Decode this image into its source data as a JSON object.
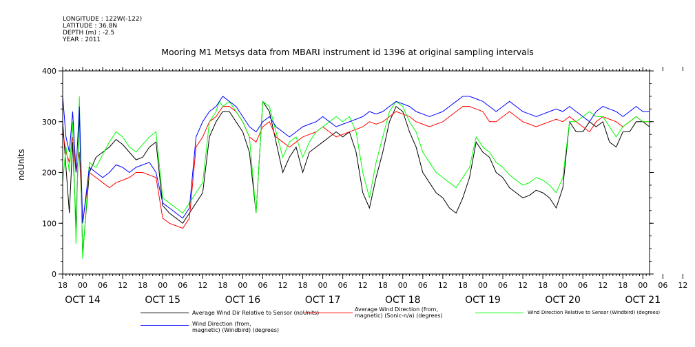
{
  "header": {
    "longitude": "LONGITUDE : 122W(-122)",
    "latitude": "LATITUDE : 36.8N",
    "depth": "DEPTH (m) : -2.5",
    "year": "YEAR : 2011"
  },
  "chart_data": {
    "type": "line",
    "title": "Mooring M1 Metsys data from MBARI instrument id 1396 at original sampling intervals",
    "ylabel": "noUnits",
    "xlabel": "",
    "ylim": [
      0,
      400
    ],
    "y_ticks": [
      0,
      100,
      200,
      300,
      400
    ],
    "xlim_hours": [
      0,
      176
    ],
    "x_hour_ticks": [
      "18",
      "00",
      "06",
      "12",
      "18",
      "00",
      "06",
      "12",
      "18",
      "00",
      "06",
      "12",
      "18",
      "00",
      "06",
      "12",
      "18",
      "00",
      "06",
      "12",
      "18",
      "00",
      "06",
      "12",
      "18",
      "00",
      "06",
      "12",
      "18",
      "00",
      "06",
      "12"
    ],
    "x_day_labels": [
      {
        "label": "OCT 14",
        "hour": 6
      },
      {
        "label": "OCT 15",
        "hour": 30
      },
      {
        "label": "OCT 16",
        "hour": 54
      },
      {
        "label": "OCT 17",
        "hour": 78
      },
      {
        "label": "OCT 18",
        "hour": 102
      },
      {
        "label": "OCT 19",
        "hour": 126
      },
      {
        "label": "OCT 20",
        "hour": 150
      },
      {
        "label": "OCT 21",
        "hour": 174
      }
    ],
    "grid": false,
    "legend_position": "bottom",
    "series": [
      {
        "name": "Average Wind Dir Relative to Sensor (noUnits)",
        "color": "#000000",
        "hours": [
          0,
          1,
          2,
          3,
          4,
          5,
          6,
          8,
          10,
          12,
          14,
          16,
          18,
          20,
          22,
          24,
          26,
          28,
          30,
          32,
          34,
          36,
          38,
          40,
          42,
          44,
          46,
          47,
          48,
          50,
          52,
          54,
          56,
          58,
          60,
          62,
          64,
          66,
          68,
          70,
          72,
          74,
          76,
          78,
          80,
          82,
          84,
          86,
          88,
          90,
          92,
          94,
          96,
          98,
          100,
          102,
          104,
          106,
          108,
          110,
          112,
          114,
          116,
          118,
          120,
          122,
          124,
          126,
          128,
          130,
          132,
          134,
          136,
          138,
          140,
          142,
          144,
          146,
          148,
          150,
          152,
          154,
          156,
          158,
          160,
          162,
          164,
          166,
          168,
          170,
          172,
          174,
          176
        ],
        "values": [
          300,
          210,
          120,
          260,
          90,
          320,
          40,
          200,
          230,
          240,
          250,
          265,
          255,
          240,
          225,
          230,
          250,
          260,
          135,
          120,
          110,
          100,
          120,
          140,
          160,
          270,
          300,
          310,
          320,
          320,
          300,
          280,
          240,
          120,
          340,
          320,
          260,
          200,
          230,
          250,
          200,
          240,
          250,
          260,
          270,
          280,
          270,
          280,
          240,
          160,
          130,
          190,
          240,
          300,
          330,
          320,
          280,
          250,
          200,
          180,
          160,
          150,
          130,
          120,
          150,
          190,
          260,
          240,
          230,
          200,
          190,
          170,
          160,
          150,
          155,
          165,
          160,
          150,
          130,
          170,
          300,
          280,
          280,
          300,
          290,
          300,
          260,
          250,
          280,
          280,
          300,
          300,
          290
        ]
      },
      {
        "name": "Average Wind Direction (from, magnetic) (Sonic-n/a) (degrees)",
        "color": "#ff0000",
        "hours": [
          0,
          1,
          2,
          3,
          4,
          5,
          6,
          8,
          10,
          12,
          14,
          16,
          18,
          20,
          22,
          24,
          26,
          28,
          30,
          32,
          34,
          36,
          38,
          40,
          42,
          44,
          46,
          47,
          48,
          50,
          52,
          54,
          56,
          58,
          60,
          62,
          64,
          66,
          68,
          70,
          72,
          74,
          76,
          78,
          80,
          82,
          84,
          86,
          88,
          90,
          92,
          94,
          96,
          98,
          100,
          102,
          104,
          106,
          108,
          110,
          112,
          114,
          116,
          118,
          120,
          122,
          124,
          126,
          128,
          130,
          132,
          134,
          136,
          138,
          140,
          142,
          144,
          146,
          148,
          150,
          152,
          154,
          156,
          158,
          160,
          162,
          164,
          166,
          168,
          170,
          172,
          174,
          176
        ],
        "values": [
          280,
          240,
          220,
          270,
          200,
          240,
          100,
          200,
          190,
          180,
          170,
          180,
          185,
          190,
          200,
          200,
          195,
          190,
          110,
          100,
          95,
          90,
          110,
          250,
          270,
          300,
          310,
          320,
          330,
          330,
          320,
          300,
          270,
          260,
          290,
          300,
          270,
          260,
          250,
          260,
          270,
          275,
          280,
          290,
          280,
          270,
          275,
          280,
          285,
          290,
          300,
          295,
          300,
          310,
          320,
          315,
          310,
          300,
          295,
          290,
          295,
          300,
          310,
          320,
          330,
          330,
          325,
          320,
          300,
          300,
          310,
          320,
          310,
          300,
          295,
          290,
          295,
          300,
          305,
          300,
          310,
          300,
          290,
          280,
          300,
          310,
          305,
          300,
          290,
          300,
          310,
          300,
          300
        ]
      },
      {
        "name": "Wind Direction Relative to Sensor (Windbird) (degrees)",
        "color": "#00ff00",
        "hours": [
          0,
          1,
          2,
          3,
          4,
          5,
          6,
          8,
          10,
          12,
          14,
          16,
          18,
          20,
          22,
          24,
          26,
          28,
          30,
          32,
          34,
          36,
          38,
          40,
          42,
          44,
          46,
          47,
          48,
          50,
          52,
          54,
          56,
          58,
          60,
          62,
          64,
          66,
          68,
          70,
          72,
          74,
          76,
          78,
          80,
          82,
          84,
          86,
          88,
          90,
          92,
          94,
          96,
          98,
          100,
          102,
          104,
          106,
          108,
          110,
          112,
          114,
          116,
          118,
          120,
          122,
          124,
          126,
          128,
          130,
          132,
          134,
          136,
          138,
          140,
          142,
          144,
          146,
          148,
          150,
          152,
          154,
          156,
          158,
          160,
          162,
          164,
          166,
          168,
          170,
          172,
          174,
          176
        ],
        "values": [
          180,
          250,
          200,
          300,
          60,
          350,
          30,
          220,
          210,
          235,
          260,
          280,
          270,
          250,
          240,
          255,
          270,
          280,
          150,
          140,
          130,
          120,
          140,
          160,
          180,
          300,
          320,
          340,
          330,
          340,
          320,
          300,
          270,
          120,
          340,
          330,
          280,
          230,
          260,
          270,
          230,
          260,
          280,
          290,
          300,
          310,
          300,
          310,
          280,
          200,
          150,
          220,
          270,
          320,
          340,
          330,
          300,
          280,
          240,
          220,
          200,
          190,
          180,
          170,
          190,
          210,
          270,
          250,
          240,
          220,
          210,
          195,
          185,
          175,
          180,
          190,
          185,
          175,
          160,
          190,
          300,
          300,
          310,
          320,
          310,
          310,
          290,
          270,
          290,
          300,
          310,
          300,
          300
        ]
      },
      {
        "name": "Wind Direction (from, magnetic) (Windbird) (degrees)",
        "color": "#0000ff",
        "hours": [
          0,
          1,
          2,
          3,
          4,
          5,
          6,
          8,
          10,
          12,
          14,
          16,
          18,
          20,
          22,
          24,
          26,
          28,
          30,
          32,
          34,
          36,
          38,
          40,
          42,
          44,
          46,
          47,
          48,
          50,
          52,
          54,
          56,
          58,
          60,
          62,
          64,
          66,
          68,
          70,
          72,
          74,
          76,
          78,
          80,
          82,
          84,
          86,
          88,
          90,
          92,
          94,
          96,
          98,
          100,
          102,
          104,
          106,
          108,
          110,
          112,
          114,
          116,
          118,
          120,
          122,
          124,
          126,
          128,
          130,
          132,
          134,
          136,
          138,
          140,
          142,
          144,
          146,
          148,
          150,
          152,
          154,
          156,
          158,
          160,
          162,
          164,
          166,
          168,
          170,
          172,
          174,
          176
        ],
        "values": [
          350,
          270,
          240,
          320,
          200,
          330,
          100,
          210,
          200,
          190,
          200,
          215,
          210,
          200,
          210,
          215,
          220,
          200,
          140,
          130,
          120,
          110,
          130,
          270,
          300,
          320,
          330,
          340,
          350,
          340,
          330,
          310,
          290,
          280,
          300,
          310,
          290,
          280,
          270,
          280,
          290,
          295,
          300,
          310,
          300,
          290,
          295,
          300,
          305,
          310,
          320,
          315,
          320,
          330,
          340,
          335,
          330,
          320,
          315,
          310,
          315,
          320,
          330,
          340,
          350,
          350,
          345,
          340,
          330,
          320,
          330,
          340,
          330,
          320,
          315,
          310,
          315,
          320,
          325,
          320,
          330,
          320,
          310,
          300,
          320,
          330,
          325,
          320,
          310,
          320,
          330,
          320,
          320
        ]
      }
    ]
  },
  "legend": [
    {
      "lines": [
        "Average Wind Dir Relative to Sensor (noUnits)"
      ],
      "color": "#000000"
    },
    {
      "lines": [
        "Average Wind Direction (from,",
        "magnetic) (Sonic-n/a) (degrees)"
      ],
      "color": "#ff0000"
    },
    {
      "lines": [
        "Wind Direction Relative to Sensor (Windbird) (degrees)"
      ],
      "color": "#00ff00"
    },
    {
      "lines": [
        "Wind Direction (from,",
        "magnetic) (Windbird) (degrees)"
      ],
      "color": "#0000ff"
    }
  ]
}
